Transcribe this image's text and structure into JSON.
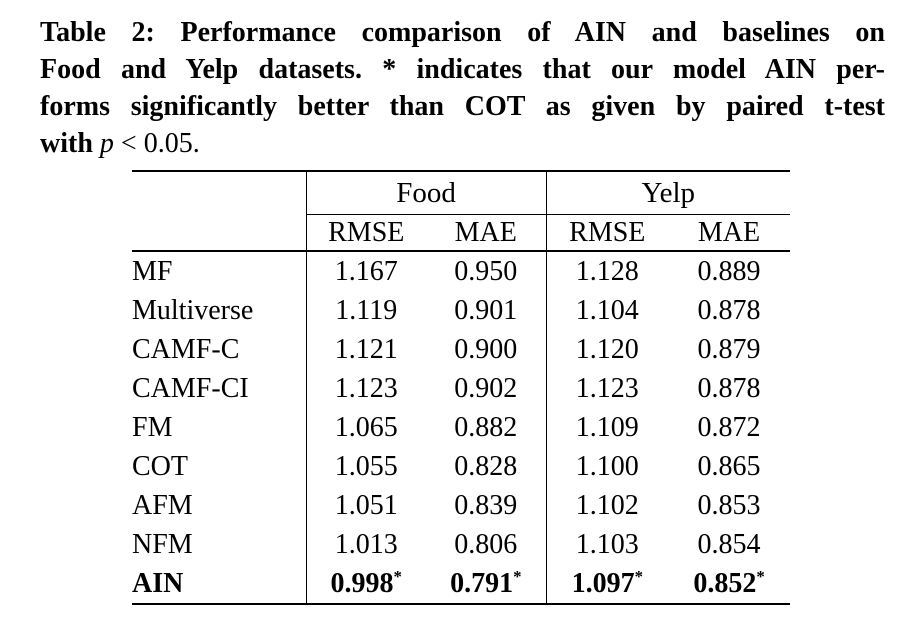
{
  "caption": {
    "lines": [
      {
        "parts": [
          {
            "t": "Table 2: Performance comparison of AIN and baselines on",
            "style": "bold"
          }
        ]
      },
      {
        "parts": [
          {
            "t": "Food and Yelp datasets. * indicates that our model AIN per-",
            "style": "bold"
          }
        ]
      },
      {
        "parts": [
          {
            "t": "forms significantly better than COT as given by paired t-test",
            "style": "bold"
          }
        ]
      },
      {
        "parts": [
          {
            "t": "with ",
            "style": "bold"
          },
          {
            "t": "p",
            "style": "italic"
          },
          {
            "t": " < 0.05.",
            "style": "normal"
          }
        ]
      }
    ]
  },
  "table": {
    "star_symbol": "*",
    "groups": [
      {
        "label": "Food"
      },
      {
        "label": "Yelp"
      }
    ],
    "sub_headers": [
      "RMSE",
      "MAE",
      "RMSE",
      "MAE"
    ],
    "rows": [
      {
        "model": "MF",
        "values": [
          "1.167",
          "0.950",
          "1.128",
          "0.889"
        ],
        "bold": false,
        "starred": false
      },
      {
        "model": "Multiverse",
        "values": [
          "1.119",
          "0.901",
          "1.104",
          "0.878"
        ],
        "bold": false,
        "starred": false
      },
      {
        "model": "CAMF-C",
        "values": [
          "1.121",
          "0.900",
          "1.120",
          "0.879"
        ],
        "bold": false,
        "starred": false
      },
      {
        "model": "CAMF-CI",
        "values": [
          "1.123",
          "0.902",
          "1.123",
          "0.878"
        ],
        "bold": false,
        "starred": false
      },
      {
        "model": "FM",
        "values": [
          "1.065",
          "0.882",
          "1.109",
          "0.872"
        ],
        "bold": false,
        "starred": false
      },
      {
        "model": "COT",
        "values": [
          "1.055",
          "0.828",
          "1.100",
          "0.865"
        ],
        "bold": false,
        "starred": false
      },
      {
        "model": "AFM",
        "values": [
          "1.051",
          "0.839",
          "1.102",
          "0.853"
        ],
        "bold": false,
        "starred": false
      },
      {
        "model": "NFM",
        "values": [
          "1.013",
          "0.806",
          "1.103",
          "0.854"
        ],
        "bold": false,
        "starred": false
      },
      {
        "model": "AIN",
        "values": [
          "0.998",
          "0.791",
          "1.097",
          "0.852"
        ],
        "bold": true,
        "starred": true
      }
    ]
  },
  "colors": {
    "background": "#ffffff",
    "text": "#000000",
    "rule": "#000000"
  }
}
